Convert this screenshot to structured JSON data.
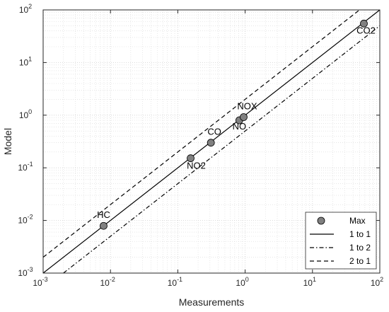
{
  "chart_data": {
    "type": "scatter",
    "xlabel": "Measurements",
    "ylabel": "Model",
    "xscale": "log",
    "yscale": "log",
    "xlim": [
      0.001,
      100
    ],
    "ylim": [
      0.001,
      100
    ],
    "grid": true,
    "legend_position": "bottom-right",
    "x_ticks": [
      {
        "base": "10",
        "exp": "-3",
        "value": 0.001
      },
      {
        "base": "10",
        "exp": "-2",
        "value": 0.01
      },
      {
        "base": "10",
        "exp": "-1",
        "value": 0.1
      },
      {
        "base": "10",
        "exp": "0",
        "value": 1
      },
      {
        "base": "10",
        "exp": "1",
        "value": 10
      },
      {
        "base": "10",
        "exp": "2",
        "value": 100
      }
    ],
    "y_ticks": [
      {
        "base": "10",
        "exp": "-3",
        "value": 0.001
      },
      {
        "base": "10",
        "exp": "-2",
        "value": 0.01
      },
      {
        "base": "10",
        "exp": "-1",
        "value": 0.1
      },
      {
        "base": "10",
        "exp": "0",
        "value": 1
      },
      {
        "base": "10",
        "exp": "1",
        "value": 10
      },
      {
        "base": "10",
        "exp": "2",
        "value": 100
      }
    ],
    "points": [
      {
        "label": "HC",
        "x": 0.0079,
        "y": 0.0079
      },
      {
        "label": "NO2",
        "x": 0.155,
        "y": 0.152
      },
      {
        "label": "CO",
        "x": 0.31,
        "y": 0.3
      },
      {
        "label": "NO",
        "x": 0.82,
        "y": 0.8
      },
      {
        "label": "NOX",
        "x": 0.95,
        "y": 0.92
      },
      {
        "label": "CO2",
        "x": 58,
        "y": 55
      }
    ],
    "points_color": "#808080",
    "reference_lines": [
      {
        "name": "1 to 1",
        "slope": 1,
        "style": "solid"
      },
      {
        "name": "1 to 2",
        "slope": 0.5,
        "style": "dashdot"
      },
      {
        "name": "2 to 1",
        "slope": 2,
        "style": "dashed"
      }
    ],
    "legend": [
      {
        "label": "Max",
        "kind": "marker"
      },
      {
        "label": "1 to 1",
        "kind": "solid"
      },
      {
        "label": "1 to 2",
        "kind": "dashdot"
      },
      {
        "label": "2 to 1",
        "kind": "dashed"
      }
    ]
  }
}
